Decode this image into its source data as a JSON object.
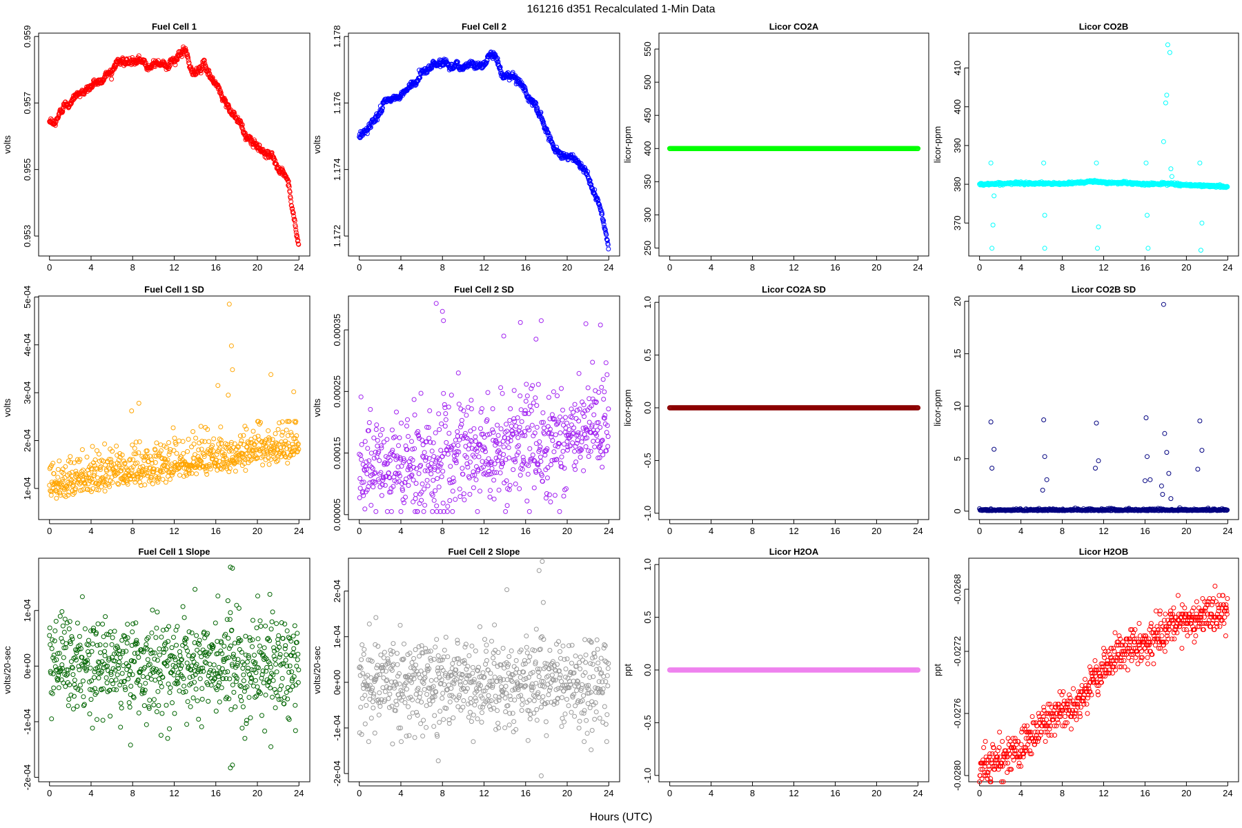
{
  "page": {
    "title": "161216   d351   Recalculated 1-Min Data",
    "xlabel": "Hours (UTC)"
  },
  "chart_data": [
    {
      "id": "fc1",
      "type": "scatter",
      "title": "Fuel Cell 1",
      "ylabel": "volts",
      "color": "#ff0000",
      "xlim": [
        0,
        24
      ],
      "ylim": [
        0.9524,
        0.9591
      ],
      "xticks": [
        "0",
        "4",
        "8",
        "12",
        "16",
        "20",
        "24"
      ],
      "yticks": [
        {
          "v": 0.953,
          "label": "0.953"
        },
        {
          "v": 0.955,
          "label": "0.955"
        },
        {
          "v": 0.957,
          "label": "0.957"
        },
        {
          "v": 0.959,
          "label": "0.959"
        }
      ],
      "points": [
        [
          0,
          0.9564
        ],
        [
          0.5,
          0.9563
        ],
        [
          1,
          0.9567
        ],
        [
          1.5,
          0.957
        ],
        [
          2,
          0.9571
        ],
        [
          3,
          0.9573
        ],
        [
          4,
          0.9575
        ],
        [
          5,
          0.9577
        ],
        [
          6,
          0.958
        ],
        [
          6.5,
          0.9583
        ],
        [
          8,
          0.9582
        ],
        [
          10,
          0.9582
        ],
        [
          12,
          0.9582
        ],
        [
          13,
          0.9586
        ],
        [
          13.8,
          0.9578
        ],
        [
          14.5,
          0.9581
        ],
        [
          15,
          0.9581
        ],
        [
          16,
          0.9576
        ],
        [
          17,
          0.957
        ],
        [
          18,
          0.9566
        ],
        [
          19,
          0.9559
        ],
        [
          20,
          0.9557
        ],
        [
          21,
          0.9555
        ],
        [
          21.5,
          0.9554
        ],
        [
          22,
          0.9551
        ],
        [
          23,
          0.9545
        ],
        [
          24,
          0.9526
        ]
      ]
    },
    {
      "id": "fc2",
      "type": "scatter",
      "title": "Fuel Cell 2",
      "ylabel": "volts",
      "color": "#0000ff",
      "xlim": [
        0,
        24
      ],
      "ylim": [
        1.1714,
        1.1781
      ],
      "xticks": [
        "0",
        "4",
        "8",
        "12",
        "16",
        "20",
        "24"
      ],
      "yticks": [
        {
          "v": 1.172,
          "label": "1.172"
        },
        {
          "v": 1.174,
          "label": "1.174"
        },
        {
          "v": 1.176,
          "label": "1.176"
        },
        {
          "v": 1.178,
          "label": "1.178"
        }
      ],
      "points": [
        [
          0,
          1.175
        ],
        [
          1,
          1.1753
        ],
        [
          2,
          1.1758
        ],
        [
          3,
          1.1761
        ],
        [
          4,
          1.1762
        ],
        [
          5,
          1.1765
        ],
        [
          6,
          1.1769
        ],
        [
          7,
          1.1772
        ],
        [
          8,
          1.1772
        ],
        [
          10,
          1.1771
        ],
        [
          12,
          1.1772
        ],
        [
          13,
          1.1776
        ],
        [
          13.8,
          1.1768
        ],
        [
          15,
          1.1769
        ],
        [
          16,
          1.1763
        ],
        [
          17,
          1.1759
        ],
        [
          18,
          1.1752
        ],
        [
          19,
          1.1746
        ],
        [
          20,
          1.1744
        ],
        [
          21,
          1.1742
        ],
        [
          22,
          1.1738
        ],
        [
          23,
          1.173
        ],
        [
          24,
          1.1717
        ]
      ]
    },
    {
      "id": "co2a",
      "type": "scatter",
      "title": "Licor CO2A",
      "ylabel": "licor-ppm",
      "color": "#00ff00",
      "xlim": [
        0,
        24
      ],
      "ylim": [
        238,
        574
      ],
      "xticks": [
        "0",
        "4",
        "8",
        "12",
        "16",
        "20",
        "24"
      ],
      "yticks": [
        {
          "v": 250,
          "label": "250"
        },
        {
          "v": 300,
          "label": "300"
        },
        {
          "v": 350,
          "label": "350"
        },
        {
          "v": 400,
          "label": "400"
        },
        {
          "v": 450,
          "label": "450"
        },
        {
          "v": 500,
          "label": "500"
        },
        {
          "v": 550,
          "label": "550"
        }
      ],
      "points": [
        [
          0,
          400
        ],
        [
          24,
          400
        ]
      ]
    },
    {
      "id": "co2b",
      "type": "scatter",
      "title": "Licor CO2B",
      "ylabel": "licor-ppm",
      "color": "#00ffff",
      "xlim": [
        0,
        24
      ],
      "ylim": [
        361.5,
        419
      ],
      "xticks": [
        "0",
        "4",
        "8",
        "12",
        "16",
        "20",
        "24"
      ],
      "yticks": [
        {
          "v": 370,
          "label": "370"
        },
        {
          "v": 380,
          "label": "380"
        },
        {
          "v": 390,
          "label": "390"
        },
        {
          "v": 400,
          "label": "400"
        },
        {
          "v": 410,
          "label": "410"
        }
      ],
      "points": [
        [
          0,
          380
        ],
        [
          4,
          380.3
        ],
        [
          8,
          380.1
        ],
        [
          11,
          380.8
        ],
        [
          12,
          380.4
        ],
        [
          14,
          380.4
        ],
        [
          16,
          380.0
        ],
        [
          18,
          380.2
        ],
        [
          20,
          379.8
        ],
        [
          24,
          379.4
        ]
      ],
      "outliers": [
        [
          1.1,
          385.5
        ],
        [
          1.2,
          363.5
        ],
        [
          1.3,
          369.5
        ],
        [
          1.4,
          377
        ],
        [
          6.2,
          385.5
        ],
        [
          6.3,
          372
        ],
        [
          6.3,
          363.5
        ],
        [
          11.3,
          385.5
        ],
        [
          11.4,
          363.5
        ],
        [
          11.5,
          369
        ],
        [
          16.1,
          385.5
        ],
        [
          16.2,
          372
        ],
        [
          16.3,
          363.5
        ],
        [
          17.8,
          391
        ],
        [
          18.0,
          401
        ],
        [
          18.1,
          403
        ],
        [
          18.2,
          416
        ],
        [
          18.4,
          414
        ],
        [
          18.5,
          384
        ],
        [
          18.6,
          382
        ],
        [
          21.3,
          385.5
        ],
        [
          21.4,
          363
        ],
        [
          21.5,
          370
        ]
      ]
    },
    {
      "id": "fc1sd",
      "type": "scatter",
      "title": "Fuel Cell 1 SD",
      "ylabel": "volts",
      "color": "#ffa500",
      "xlim": [
        0,
        24
      ],
      "ylim": [
        3.5e-05,
        0.000502
      ],
      "xticks": [
        "0",
        "4",
        "8",
        "12",
        "16",
        "20",
        "24"
      ],
      "yticks": [
        {
          "v": 0.0001,
          "label": "1e-04"
        },
        {
          "v": 0.0002,
          "label": "2e-04"
        },
        {
          "v": 0.0003,
          "label": "3e-04"
        },
        {
          "v": 0.0004,
          "label": "4e-04"
        },
        {
          "v": 0.0005,
          "label": "5e-04"
        }
      ],
      "outliers": [
        [
          17.3,
          0.000485
        ],
        [
          17.5,
          0.000398
        ],
        [
          17.6,
          0.000348
        ],
        [
          16.2,
          0.000315
        ],
        [
          17.2,
          0.000295
        ],
        [
          21.3,
          0.000338
        ],
        [
          23.5,
          0.000302
        ],
        [
          8.6,
          0.000278
        ],
        [
          7.9,
          0.000262
        ]
      ]
    },
    {
      "id": "fc2sd",
      "type": "scatter",
      "title": "Fuel Cell 2 SD",
      "ylabel": "volts",
      "color": "#a020f0",
      "xlim": [
        0,
        24
      ],
      "ylim": [
        4.2e-05,
        0.000405
      ],
      "xticks": [
        "0",
        "4",
        "8",
        "12",
        "16",
        "20",
        "24"
      ],
      "yticks": [
        {
          "v": 5e-05,
          "label": "0.00005"
        },
        {
          "v": 0.00015,
          "label": "0.00015"
        },
        {
          "v": 0.00025,
          "label": "0.00025"
        },
        {
          "v": 0.00035,
          "label": "0.00035"
        }
      ],
      "outliers": [
        [
          7.4,
          0.000393
        ],
        [
          8.0,
          0.00038
        ],
        [
          8.1,
          0.000365
        ],
        [
          13.9,
          0.00034
        ],
        [
          15.5,
          0.000362
        ],
        [
          17.5,
          0.000365
        ],
        [
          21.8,
          0.00036
        ],
        [
          23.2,
          0.000358
        ],
        [
          17.0,
          0.000335
        ]
      ]
    },
    {
      "id": "co2asd",
      "type": "scatter",
      "title": "Licor CO2A SD",
      "ylabel": "licor-ppm",
      "color": "#8b0000",
      "xlim": [
        0,
        24
      ],
      "ylim": [
        -1.06,
        1.06
      ],
      "xticks": [
        "0",
        "4",
        "8",
        "12",
        "16",
        "20",
        "24"
      ],
      "yticks": [
        {
          "v": -1,
          "label": "-1.0"
        },
        {
          "v": -0.5,
          "label": "-0.5"
        },
        {
          "v": 0,
          "label": "0.0"
        },
        {
          "v": 0.5,
          "label": "0.5"
        },
        {
          "v": 1,
          "label": "1.0"
        }
      ],
      "points": [
        [
          0,
          0
        ],
        [
          24,
          0
        ]
      ]
    },
    {
      "id": "co2bsd",
      "type": "scatter",
      "title": "Licor CO2B SD",
      "ylabel": "licor-ppm",
      "color": "#000080",
      "xlim": [
        0,
        24
      ],
      "ylim": [
        -0.8,
        20.5
      ],
      "xticks": [
        "0",
        "4",
        "8",
        "12",
        "16",
        "20",
        "24"
      ],
      "yticks": [
        {
          "v": 0,
          "label": "0"
        },
        {
          "v": 5,
          "label": "5"
        },
        {
          "v": 10,
          "label": "10"
        },
        {
          "v": 15,
          "label": "15"
        },
        {
          "v": 20,
          "label": "20"
        }
      ],
      "points": [
        [
          0,
          0.1
        ],
        [
          24,
          0.1
        ]
      ],
      "outliers": [
        [
          1.1,
          8.5
        ],
        [
          1.2,
          4.1
        ],
        [
          1.4,
          5.9
        ],
        [
          6.2,
          8.7
        ],
        [
          6.3,
          5.2
        ],
        [
          6.5,
          3.0
        ],
        [
          6.1,
          2.0
        ],
        [
          11.3,
          8.4
        ],
        [
          11.2,
          4.1
        ],
        [
          11.5,
          4.8
        ],
        [
          16.1,
          8.9
        ],
        [
          16.2,
          5.2
        ],
        [
          16.5,
          3.0
        ],
        [
          16.0,
          2.9
        ],
        [
          17.8,
          19.7
        ],
        [
          17.9,
          7.4
        ],
        [
          18.1,
          5.6
        ],
        [
          18.3,
          3.6
        ],
        [
          18.5,
          1.2
        ],
        [
          17.6,
          2.4
        ],
        [
          17.7,
          1.6
        ],
        [
          21.3,
          8.6
        ],
        [
          21.5,
          5.8
        ],
        [
          21.1,
          4.0
        ]
      ]
    },
    {
      "id": "fc1slope",
      "type": "scatter",
      "title": "Fuel Cell 1 Slope",
      "ylabel": "volts/20-sec",
      "color": "#006400",
      "xlim": [
        0,
        24
      ],
      "ylim": [
        -0.000208,
        0.000194
      ],
      "xticks": [
        "0",
        "4",
        "8",
        "12",
        "16",
        "20",
        "24"
      ],
      "yticks": [
        {
          "v": -0.0002,
          "label": "-2e-04"
        },
        {
          "v": -0.0001,
          "label": "-1e-04"
        },
        {
          "v": 0,
          "label": "0e+00"
        },
        {
          "v": 0.0001,
          "label": "1e-04"
        }
      ],
      "outliers": [
        [
          17.4,
          0.000178
        ],
        [
          17.6,
          0.000176
        ],
        [
          17.4,
          -0.000183
        ],
        [
          17.6,
          -0.000178
        ],
        [
          14.0,
          0.000138
        ],
        [
          16.2,
          0.000126
        ],
        [
          21.2,
          0.000129
        ],
        [
          1.2,
          9.8e-05
        ],
        [
          7.8,
          -0.000142
        ],
        [
          21.3,
          -0.000145
        ]
      ]
    },
    {
      "id": "fc2slope",
      "type": "scatter",
      "title": "Fuel Cell 2 Slope",
      "ylabel": "volts/20-sec",
      "color": "#999999",
      "xlim": [
        0,
        24
      ],
      "ylim": [
        -0.000218,
        0.000272
      ],
      "xticks": [
        "0",
        "4",
        "8",
        "12",
        "16",
        "20",
        "24"
      ],
      "yticks": [
        {
          "v": -0.0002,
          "label": "-2e-04"
        },
        {
          "v": -0.0001,
          "label": "-1e-04"
        },
        {
          "v": 0,
          "label": "0e+00"
        },
        {
          "v": 0.0001,
          "label": "1e-04"
        },
        {
          "v": 0.0002,
          "label": "2e-04"
        }
      ],
      "outliers": [
        [
          17.6,
          0.000265
        ],
        [
          17.3,
          0.000245
        ],
        [
          17.5,
          -0.000205
        ],
        [
          14.2,
          0.000203
        ],
        [
          7.6,
          -0.000172
        ],
        [
          22.3,
          -0.000148
        ],
        [
          3.2,
          -0.000135
        ],
        [
          1.6,
          0.000142
        ],
        [
          17.7,
          0.000175
        ]
      ]
    },
    {
      "id": "h2oa",
      "type": "scatter",
      "title": "Licor H2OA",
      "ylabel": "ppt",
      "color": "#ee82ee",
      "xlim": [
        0,
        24
      ],
      "ylim": [
        -1.06,
        1.06
      ],
      "xticks": [
        "0",
        "4",
        "8",
        "12",
        "16",
        "20",
        "24"
      ],
      "yticks": [
        {
          "v": -1,
          "label": "-1.0"
        },
        {
          "v": -0.5,
          "label": "-0.5"
        },
        {
          "v": 0,
          "label": "0.0"
        },
        {
          "v": 0.5,
          "label": "0.5"
        },
        {
          "v": 1,
          "label": "1.0"
        }
      ],
      "points": [
        [
          0,
          0
        ],
        [
          24,
          0
        ]
      ]
    },
    {
      "id": "h2ob",
      "type": "scatter",
      "title": "Licor H2OB",
      "ylabel": "ppt",
      "color": "#ff0000",
      "xlim": [
        0,
        24
      ],
      "ylim": [
        -0.02804,
        -0.0266
      ],
      "xticks": [
        "0",
        "4",
        "8",
        "12",
        "16",
        "20",
        "24"
      ],
      "yticks": [
        {
          "v": -0.028,
          "label": "-0.0280"
        },
        {
          "v": -0.0276,
          "label": "-0.0276"
        },
        {
          "v": -0.0272,
          "label": "-0.0272"
        },
        {
          "v": -0.0268,
          "label": "-0.0268"
        }
      ],
      "points": [
        [
          0,
          -0.02795
        ],
        [
          2,
          -0.0279
        ],
        [
          4,
          -0.02783
        ],
        [
          6,
          -0.02768
        ],
        [
          8,
          -0.02758
        ],
        [
          10,
          -0.0275
        ],
        [
          12,
          -0.0273
        ],
        [
          14,
          -0.0272
        ],
        [
          16,
          -0.02715
        ],
        [
          18,
          -0.02708
        ],
        [
          20,
          -0.027
        ],
        [
          22,
          -0.02697
        ],
        [
          24,
          -0.02692
        ]
      ]
    }
  ]
}
